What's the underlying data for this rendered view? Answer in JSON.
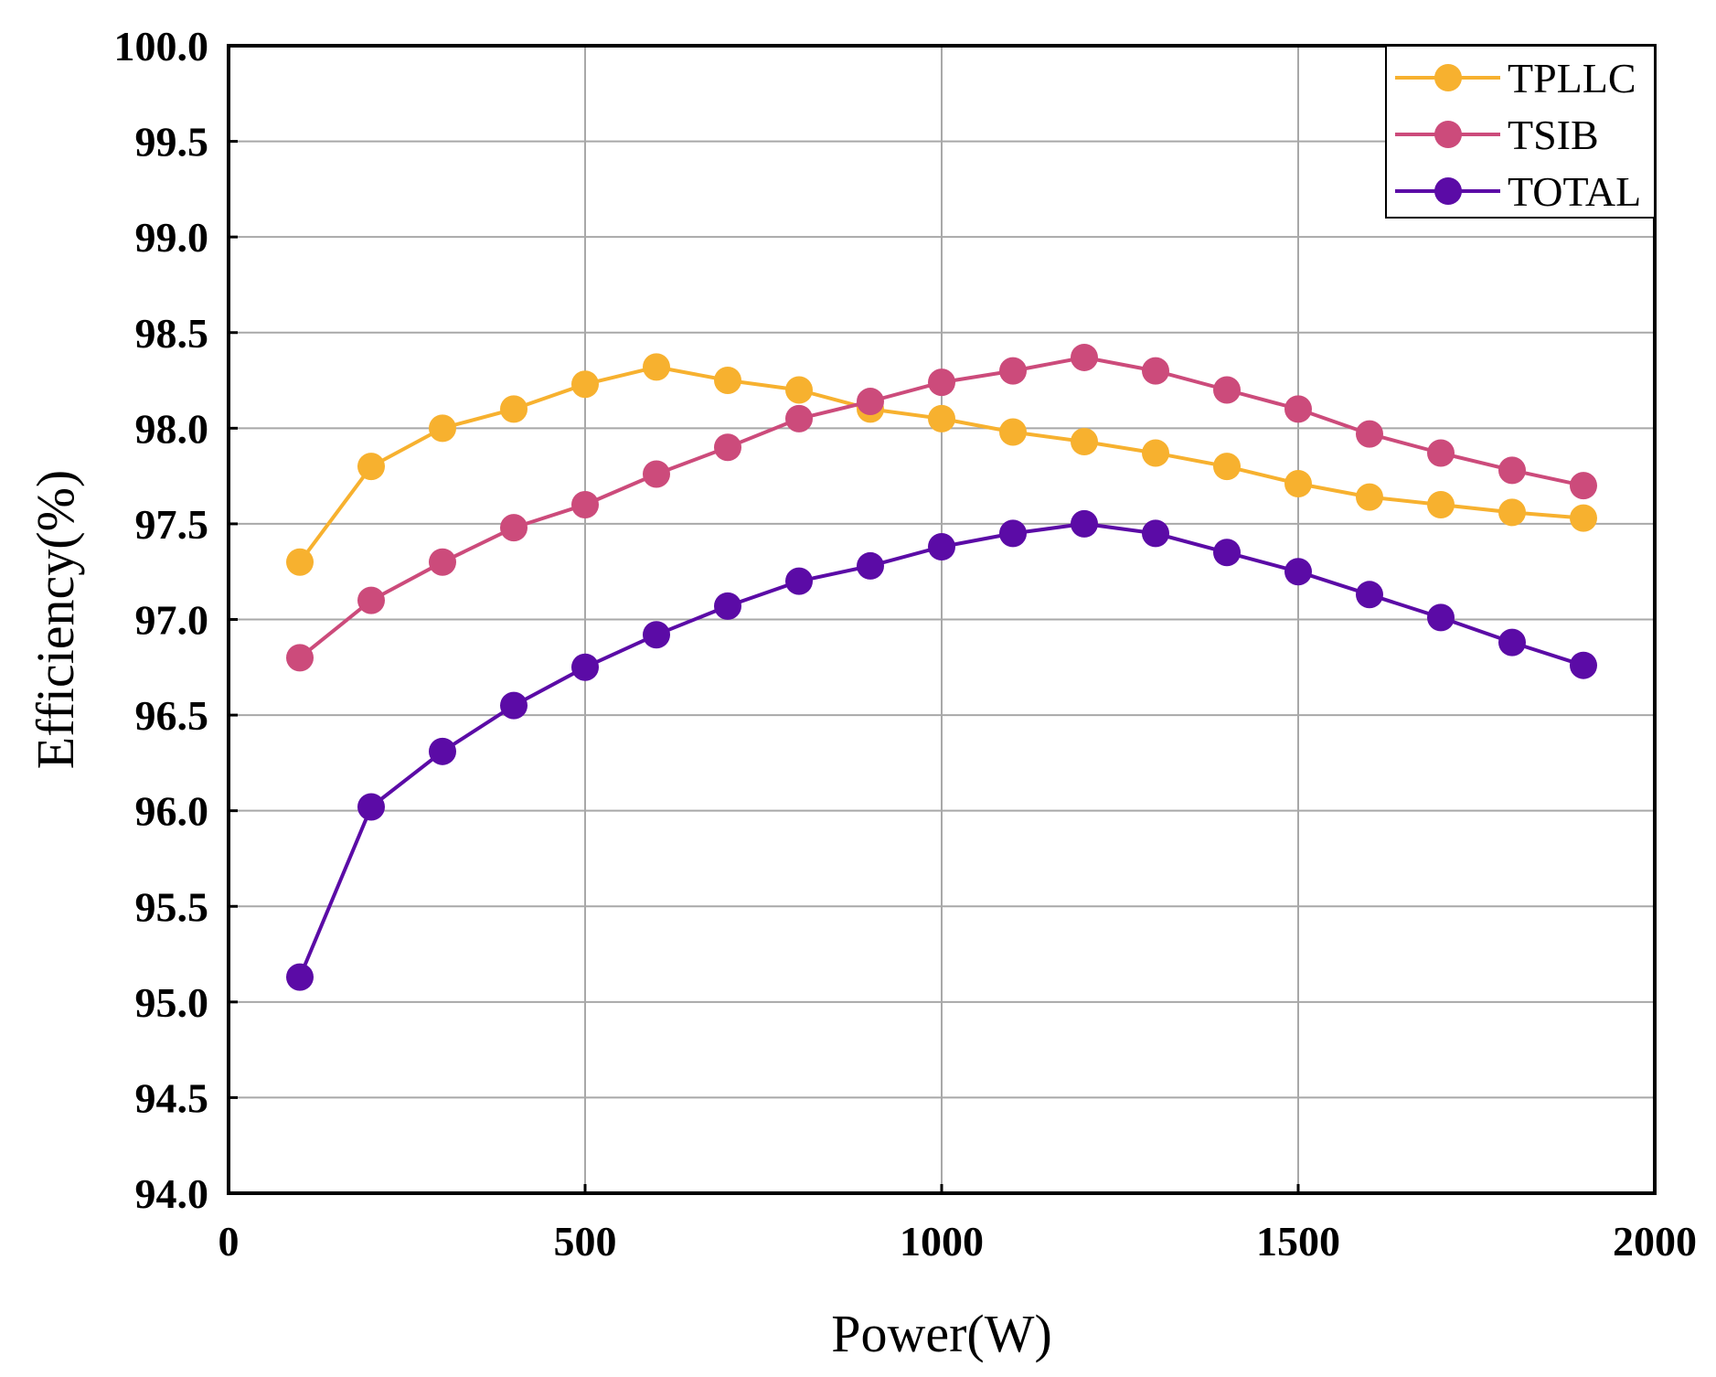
{
  "chart_data": {
    "type": "line",
    "title": "",
    "xlabel": "Power(W)",
    "ylabel": "Efficiency(%)",
    "xlim": [
      0,
      2000
    ],
    "ylim": [
      94.0,
      100.0
    ],
    "xticks": [
      0,
      500,
      1000,
      1500,
      2000
    ],
    "xtick_labels": [
      "0",
      "500",
      "1000",
      "1500",
      "2000"
    ],
    "yticks": [
      94.0,
      94.5,
      95.0,
      95.5,
      96.0,
      96.5,
      97.0,
      97.5,
      98.0,
      98.5,
      99.0,
      99.5,
      100.0
    ],
    "ytick_labels": [
      "94.0",
      "94.5",
      "95.0",
      "95.5",
      "96.0",
      "96.5",
      "97.0",
      "97.5",
      "98.0",
      "98.5",
      "99.0",
      "99.5",
      "100.0"
    ],
    "grid": true,
    "legend_position": "top-right",
    "x": [
      100,
      200,
      300,
      400,
      500,
      600,
      700,
      800,
      900,
      1000,
      1100,
      1200,
      1300,
      1400,
      1500,
      1600,
      1700,
      1800,
      1900
    ],
    "series": [
      {
        "name": "TPLLC",
        "color": "#F7B12F",
        "values": [
          97.3,
          97.8,
          98.0,
          98.1,
          98.23,
          98.32,
          98.25,
          98.2,
          98.1,
          98.05,
          97.98,
          97.93,
          97.87,
          97.8,
          97.71,
          97.64,
          97.6,
          97.56,
          97.53
        ]
      },
      {
        "name": "TSIB",
        "color": "#CC4B7B",
        "values": [
          96.8,
          97.1,
          97.3,
          97.48,
          97.6,
          97.76,
          97.9,
          98.05,
          98.14,
          98.24,
          98.3,
          98.37,
          98.3,
          98.2,
          98.1,
          97.97,
          97.87,
          97.78,
          97.7
        ]
      },
      {
        "name": "TOTAL",
        "color": "#5B0BA6",
        "values": [
          95.13,
          96.02,
          96.31,
          96.55,
          96.75,
          96.92,
          97.07,
          97.2,
          97.28,
          97.38,
          97.45,
          97.5,
          97.45,
          97.35,
          97.25,
          97.13,
          97.01,
          96.88,
          96.76
        ]
      }
    ]
  }
}
